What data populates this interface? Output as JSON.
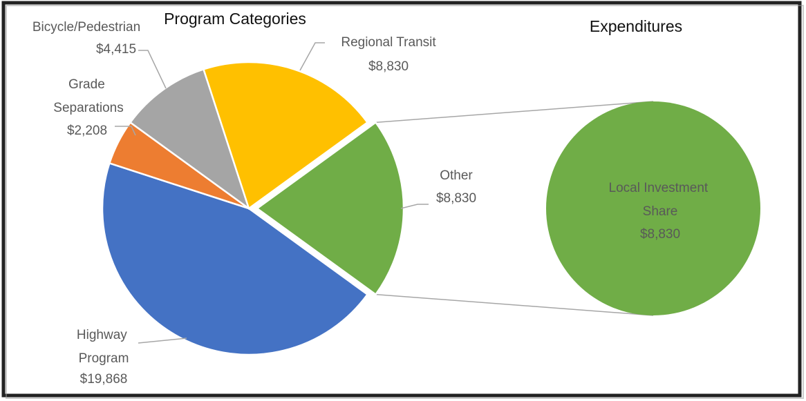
{
  "chart_data": [
    {
      "type": "pie",
      "title": "Program Categories",
      "categories": [
        "Highway Program",
        "Grade Separations",
        "Bicycle/Pedestrian",
        "Regional Transit",
        "Other"
      ],
      "values": [
        19868,
        2208,
        4415,
        8830,
        8830
      ],
      "value_labels": [
        "$19,868",
        "$2,208",
        "$4,415",
        "$8,830",
        "$8,830"
      ],
      "colors": [
        "#4472c4",
        "#ed7d31",
        "#a5a5a5",
        "#ffc000",
        "#70ad47"
      ]
    },
    {
      "type": "pie",
      "title": "Expenditures",
      "categories": [
        "Local Investment Share"
      ],
      "values": [
        8830
      ],
      "value_labels": [
        "$8,830"
      ],
      "colors": [
        "#70ad47"
      ]
    }
  ]
}
